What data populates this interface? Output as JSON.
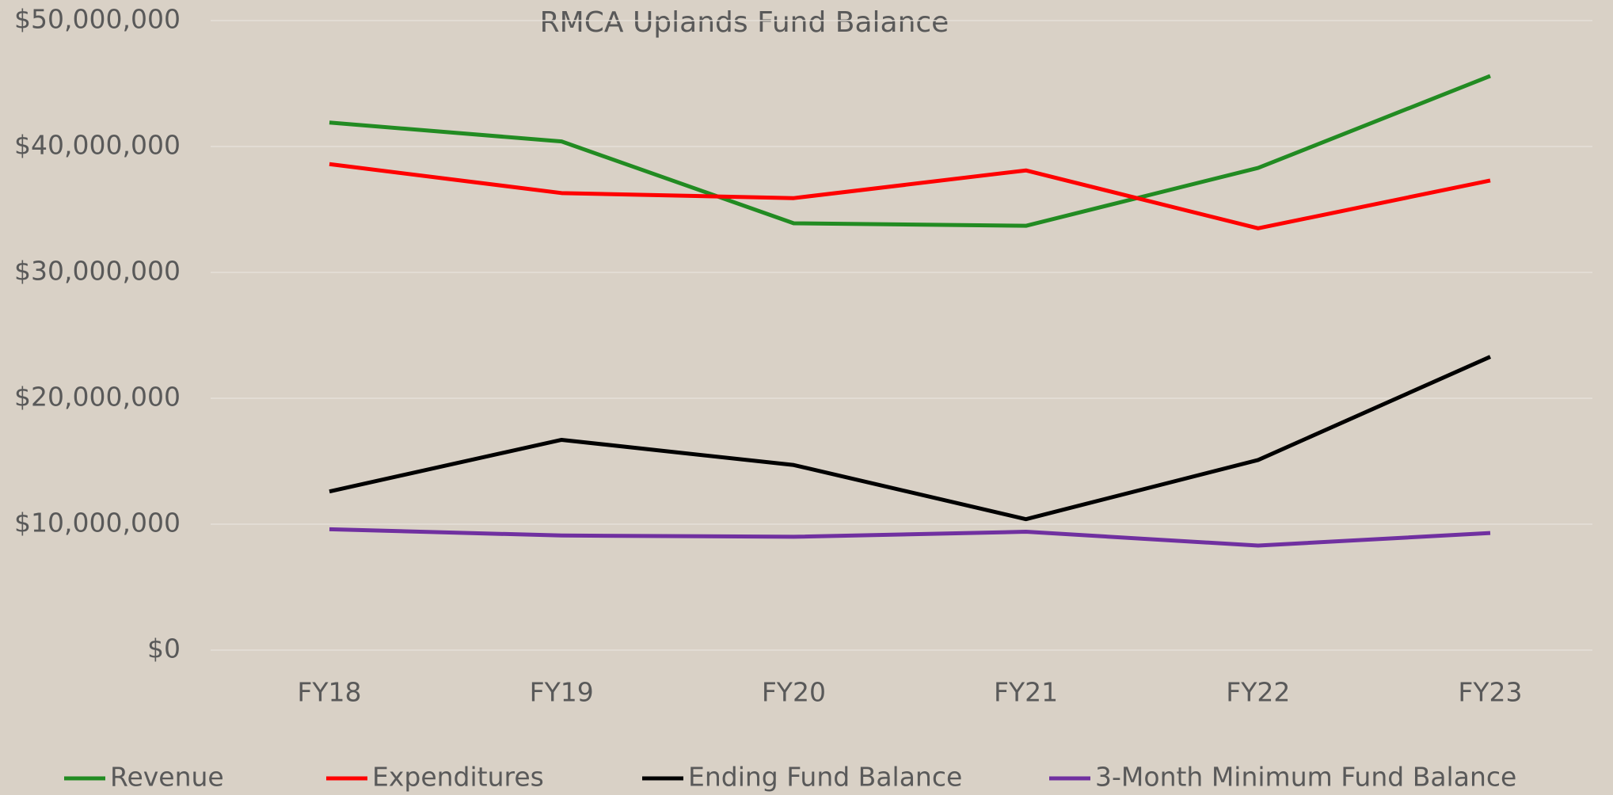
{
  "chart_data": {
    "type": "line",
    "title": "RMCA Uplands Fund Balance",
    "categories": [
      "FY18",
      "FY19",
      "FY20",
      "FY21",
      "FY22",
      "FY23"
    ],
    "series": [
      {
        "name": "Revenue",
        "color": "#228b22",
        "values": [
          41900000,
          40400000,
          33900000,
          33700000,
          38300000,
          45600000
        ]
      },
      {
        "name": "Expenditures",
        "color": "#ff0000",
        "values": [
          38600000,
          36300000,
          35900000,
          38100000,
          33500000,
          37300000
        ]
      },
      {
        "name": "Ending Fund Balance",
        "color": "#000000",
        "values": [
          12600000,
          16700000,
          14700000,
          10400000,
          15100000,
          23300000
        ]
      },
      {
        "name": "3-Month Minimum Fund Balance",
        "color": "#7030a0",
        "values": [
          9600000,
          9100000,
          9000000,
          9400000,
          8300000,
          9300000
        ]
      }
    ],
    "ylim": [
      0,
      50000000
    ],
    "yticks": [
      {
        "value": 0,
        "label": "$0"
      },
      {
        "value": 10000000,
        "label": "$10,000,000"
      },
      {
        "value": 20000000,
        "label": "$20,000,000"
      },
      {
        "value": 30000000,
        "label": "$30,000,000"
      },
      {
        "value": 40000000,
        "label": "$40,000,000"
      },
      {
        "value": 50000000,
        "label": "$50,000,000"
      }
    ],
    "grid": true,
    "legend": "bottom"
  }
}
